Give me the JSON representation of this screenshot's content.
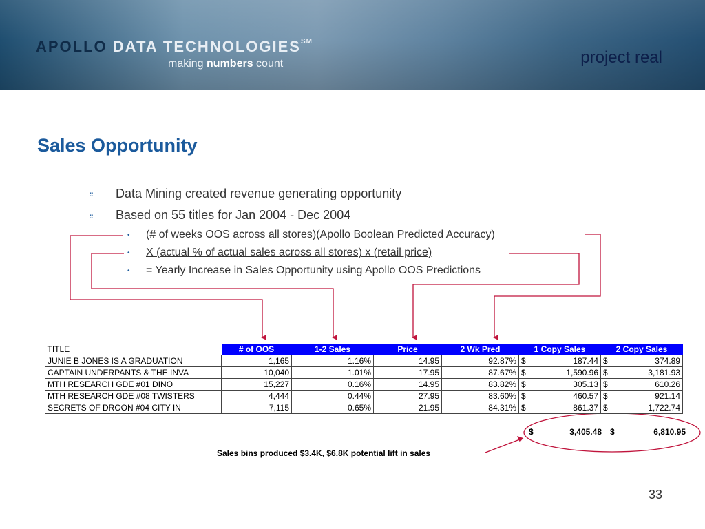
{
  "header": {
    "logo_apollo": "APOLLO",
    "logo_rest": "DATA TECHNOLOGIES",
    "logo_sm": "SM",
    "tagline_a": "making ",
    "tagline_b": "numbers",
    "tagline_c": " count",
    "project": "project real"
  },
  "title": "Sales Opportunity",
  "bullets": [
    "Data Mining created revenue generating opportunity",
    "Based on 55 titles for Jan 2004 - Dec 2004"
  ],
  "sub_bullets": [
    "(# of weeks OOS across all stores)(Apollo Boolean Predicted Accuracy)",
    "X (actual % of actual sales across all stores) x (retail price)",
    "= Yearly Increase in Sales Opportunity using Apollo OOS Predictions"
  ],
  "table": {
    "headers": [
      "TITLE",
      "# of OOS",
      "1-2 Sales",
      "Price",
      "2 Wk Pred",
      "1 Copy Sales",
      "2 Copy Sales"
    ],
    "rows": [
      [
        "JUNIE B JONES IS A GRADUATION",
        "1,165",
        "1.16%",
        "14.95",
        "92.87%",
        "$",
        "187.44",
        "$",
        "374.89"
      ],
      [
        "CAPTAIN UNDERPANTS & THE INVA",
        "10,040",
        "1.01%",
        "17.95",
        "87.67%",
        "$",
        "1,590.96",
        "$",
        "3,181.93"
      ],
      [
        "MTH RESEARCH GDE #01 DINO",
        "15,227",
        "0.16%",
        "14.95",
        "83.82%",
        "$",
        "305.13",
        "$",
        "610.26"
      ],
      [
        "MTH RESEARCH GDE #08 TWISTERS",
        "4,444",
        "0.44%",
        "27.95",
        "83.60%",
        "$",
        "460.57",
        "$",
        "921.14"
      ],
      [
        "SECRETS OF DROON #04 CITY IN",
        "7,115",
        "0.65%",
        "21.95",
        "84.31%",
        "$",
        "861.37",
        "$",
        "1,722.74"
      ]
    ],
    "totals": [
      "$",
      "3,405.48",
      "$",
      "6,810.95"
    ]
  },
  "note": "Sales bins produced $3.4K, $6.8K potential lift in sales",
  "page_number": "33",
  "colors": {
    "accent": "#1b5a9c",
    "header_blue": "#0000ff",
    "annotation_red": "#c0143c"
  }
}
